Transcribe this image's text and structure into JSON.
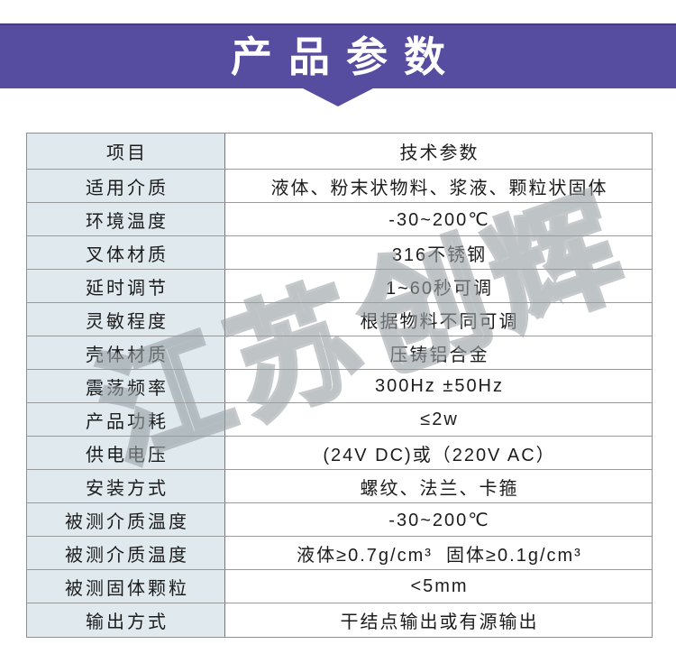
{
  "banner": {
    "title": "产品参数",
    "bg_color": "#564CA0",
    "top_line_color": "#443C7C",
    "text_color": "#FFFFFF"
  },
  "table": {
    "label_bg_color": "#DFE9EE",
    "border_color": "#8F8F8F",
    "text_color": "#1C1C1C",
    "rows": [
      {
        "label": "项目",
        "value": "技术参数"
      },
      {
        "label": "适用介质",
        "value": "液体、粉末状物料、浆液、颗粒状固体"
      },
      {
        "label": "环境温度",
        "value": "-30~200℃"
      },
      {
        "label": "叉体材质",
        "value": "316不锈钢"
      },
      {
        "label": "延时调节",
        "value": "1~60秒可调"
      },
      {
        "label": "灵敏程度",
        "value": "根据物料不同可调"
      },
      {
        "label": "壳体材质",
        "value": "压铸铝合金"
      },
      {
        "label": "震荡频率",
        "value": "300Hz ±50Hz"
      },
      {
        "label": "产品功耗",
        "value": "≤2w"
      },
      {
        "label": "供电电压",
        "value": "(24V DC)或（220V AC）"
      },
      {
        "label": "安装方式",
        "value": "螺纹、法兰、卡箍"
      },
      {
        "label": "被测介质温度",
        "value": "-30~200℃"
      },
      {
        "label": "被测介质温度",
        "value": "液体≥0.7g/cm³  固体≥0.1g/cm³"
      },
      {
        "label": "被测固体颗粒",
        "value": "<5mm"
      },
      {
        "label": "输出方式",
        "value": "干结点输出或有源输出"
      }
    ]
  },
  "watermark": {
    "text": "江苏创辉",
    "color": "#969CA2"
  }
}
